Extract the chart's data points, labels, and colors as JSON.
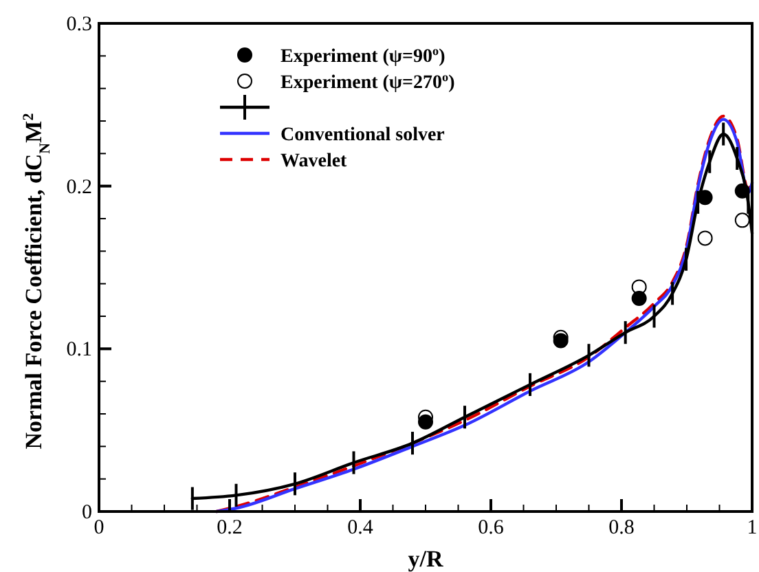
{
  "chart_data": {
    "type": "line",
    "xlabel": "y/R",
    "ylabel": "Normal Force Coefficient, dC$_{N}$M$^{2}$",
    "xlim": [
      0,
      1
    ],
    "ylim": [
      0,
      0.3
    ],
    "xticks": [
      0,
      {
        "value": 0.05,
        "label": null
      },
      {
        "value": 0.1,
        "label": null
      },
      {
        "value": 0.15,
        "label": null
      },
      0.2,
      {
        "value": 0.25,
        "label": null
      },
      {
        "value": 0.3,
        "label": null
      },
      {
        "value": 0.35,
        "label": null
      },
      0.4,
      {
        "value": 0.45,
        "label": null
      },
      {
        "value": 0.5,
        "label": null
      },
      {
        "value": 0.55,
        "label": null
      },
      0.6,
      {
        "value": 0.65,
        "label": null
      },
      {
        "value": 0.7,
        "label": null
      },
      {
        "value": 0.75,
        "label": null
      },
      0.8,
      {
        "value": 0.85,
        "label": null
      },
      {
        "value": 0.9,
        "label": null
      },
      {
        "value": 0.95,
        "label": null
      },
      1
    ],
    "yticks": [
      0,
      {
        "value": 0.02,
        "label": null
      },
      {
        "value": 0.04,
        "label": null
      },
      {
        "value": 0.06,
        "label": null
      },
      {
        "value": 0.08,
        "label": null
      },
      0.1,
      {
        "value": 0.12,
        "label": null
      },
      {
        "value": 0.14,
        "label": null
      },
      {
        "value": 0.16,
        "label": null
      },
      {
        "value": 0.18,
        "label": null
      },
      0.2,
      {
        "value": 0.22,
        "label": null
      },
      {
        "value": 0.24,
        "label": null
      },
      {
        "value": 0.26,
        "label": null
      },
      {
        "value": 0.28,
        "label": null
      },
      0.3
    ],
    "grid": false,
    "legend": "top",
    "series": [
      {
        "name": "Experiment (ψ=90$^{o}$)",
        "type": "scatter",
        "marker": "circle",
        "color": "#000000",
        "x": [
          0.5,
          0.707,
          0.827,
          0.928,
          0.985
        ],
        "values": [
          0.055,
          0.105,
          0.131,
          0.193,
          0.197
        ]
      },
      {
        "name": "Experiment (ψ=270$^{o}$)",
        "type": "scatter",
        "marker": "circle",
        "color": "#ffffff",
        "x": [
          0.5,
          0.707,
          0.827,
          0.928,
          0.985
        ],
        "values": [
          0.058,
          0.107,
          0.138,
          0.168,
          0.179
        ]
      },
      {
        "type": "line",
        "marker": "none",
        "line_style": "solid",
        "color": "#000000",
        "errors": [
          0.007,
          0.007,
          0.007,
          0.007,
          0.007,
          0.007,
          0.007,
          0.007,
          0.007,
          0.007,
          0.007,
          0.007,
          0.007,
          0.007,
          0.007,
          0.007,
          0.007,
          0.007
        ],
        "x": [
          0.143,
          0.21,
          0.3,
          0.39,
          0.48,
          0.56,
          0.66,
          0.75,
          0.806,
          0.85,
          0.878,
          0.899,
          0.917,
          0.935,
          0.956,
          0.977,
          0.994,
          1.0
        ],
        "values": [
          0.008,
          0.01,
          0.017,
          0.03,
          0.042,
          0.058,
          0.078,
          0.096,
          0.11,
          0.12,
          0.134,
          0.155,
          0.19,
          0.215,
          0.232,
          0.217,
          0.19,
          0.171
        ]
      },
      {
        "name": "Conventional solver",
        "type": "line",
        "marker": "none",
        "line_style": "solid",
        "color": "#3333ff",
        "x": [
          0.18,
          0.21,
          0.3,
          0.39,
          0.48,
          0.56,
          0.66,
          0.75,
          0.806,
          0.85,
          0.878,
          0.9,
          0.917,
          0.935,
          0.956,
          0.977,
          0.994,
          1.0
        ],
        "values": [
          0,
          0.002,
          0.014,
          0.026,
          0.04,
          0.053,
          0.074,
          0.092,
          0.11,
          0.126,
          0.139,
          0.162,
          0.199,
          0.227,
          0.241,
          0.227,
          0.196,
          0.202
        ]
      },
      {
        "name": "Wavelet",
        "type": "line",
        "marker": "none",
        "line_style": "dashed",
        "color": "#dd0000",
        "x": [
          0.18,
          0.21,
          0.3,
          0.39,
          0.48,
          0.56,
          0.66,
          0.75,
          0.806,
          0.85,
          0.878,
          0.9,
          0.917,
          0.935,
          0.956,
          0.977,
          0.994,
          1.0
        ],
        "values": [
          0,
          0.003,
          0.015,
          0.028,
          0.042,
          0.056,
          0.077,
          0.095,
          0.113,
          0.128,
          0.141,
          0.164,
          0.201,
          0.229,
          0.243,
          0.229,
          0.198,
          0.204
        ]
      }
    ]
  }
}
